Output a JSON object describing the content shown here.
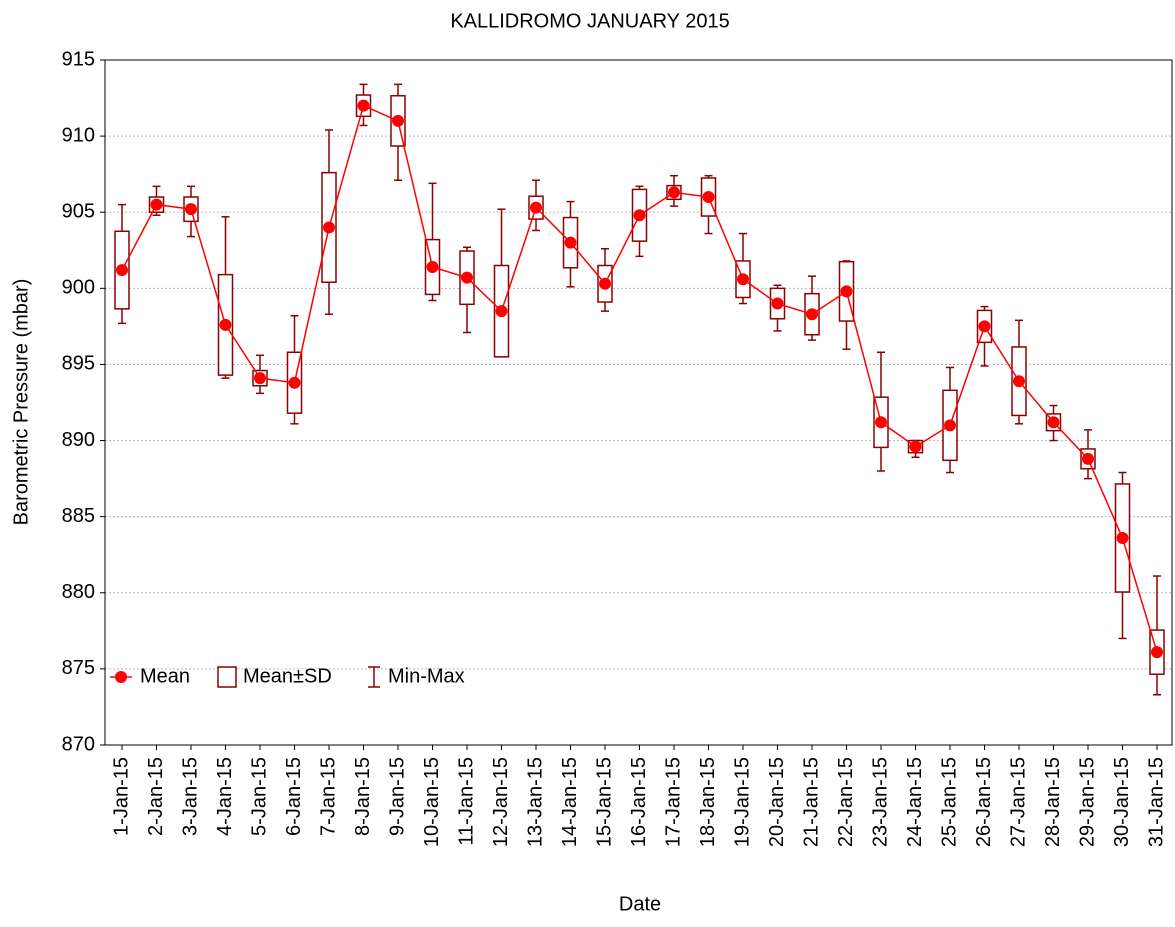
{
  "chart_data": {
    "type": "box",
    "title": "KALLIDROMO JANUARY 2015",
    "xlabel": "Date",
    "ylabel": "Barometric Pressure (mbar)",
    "categories": [
      "1-Jan-15",
      "2-Jan-15",
      "3-Jan-15",
      "4-Jan-15",
      "5-Jan-15",
      "6-Jan-15",
      "7-Jan-15",
      "8-Jan-15",
      "9-Jan-15",
      "10-Jan-15",
      "11-Jan-15",
      "12-Jan-15",
      "13-Jan-15",
      "14-Jan-15",
      "15-Jan-15",
      "16-Jan-15",
      "17-Jan-15",
      "18-Jan-15",
      "19-Jan-15",
      "20-Jan-15",
      "21-Jan-15",
      "22-Jan-15",
      "23-Jan-15",
      "24-Jan-15",
      "25-Jan-15",
      "26-Jan-15",
      "27-Jan-15",
      "28-Jan-15",
      "29-Jan-15",
      "30-Jan-15",
      "31-Jan-15"
    ],
    "mean": [
      901.2,
      905.5,
      905.2,
      897.6,
      894.1,
      893.8,
      904.0,
      912.0,
      911.0,
      901.4,
      900.7,
      898.5,
      905.3,
      903.0,
      900.3,
      904.8,
      906.3,
      906.0,
      900.6,
      899.0,
      898.3,
      899.8,
      891.2,
      889.6,
      891.0,
      897.5,
      893.9,
      891.2,
      888.8,
      883.6,
      876.1
    ],
    "sd": [
      2.55,
      0.5,
      0.8,
      3.3,
      0.5,
      2.0,
      3.6,
      0.7,
      1.65,
      1.8,
      1.75,
      3.0,
      0.75,
      1.65,
      1.2,
      1.7,
      0.45,
      1.25,
      1.2,
      1.0,
      1.35,
      1.95,
      1.65,
      0.4,
      2.3,
      1.05,
      2.25,
      0.55,
      0.65,
      3.55,
      1.45
    ],
    "min": [
      897.7,
      904.8,
      903.4,
      894.1,
      893.1,
      891.1,
      898.3,
      910.7,
      907.1,
      899.2,
      897.1,
      895.5,
      903.8,
      900.1,
      898.5,
      902.1,
      905.4,
      903.6,
      899.0,
      897.2,
      896.6,
      896.0,
      888.0,
      888.9,
      887.9,
      894.9,
      891.1,
      890.0,
      887.5,
      877.0,
      873.3
    ],
    "max": [
      905.5,
      906.7,
      906.7,
      904.7,
      895.6,
      898.2,
      910.4,
      913.4,
      913.4,
      906.9,
      902.7,
      905.2,
      907.1,
      905.7,
      902.6,
      906.7,
      907.4,
      907.4,
      903.6,
      900.2,
      900.8,
      901.8,
      895.8,
      890.0,
      894.8,
      898.8,
      897.9,
      892.3,
      890.7,
      887.9,
      881.1
    ],
    "legend": [
      "Mean",
      "Mean±SD",
      "Min-Max"
    ],
    "legend_position": "lower left",
    "mean_color": "#ff0000",
    "box_color": "#8b0000",
    "ylim": [
      870,
      915
    ],
    "yticks": [
      870,
      875,
      880,
      885,
      890,
      895,
      900,
      905,
      910,
      915
    ],
    "grid": true
  }
}
